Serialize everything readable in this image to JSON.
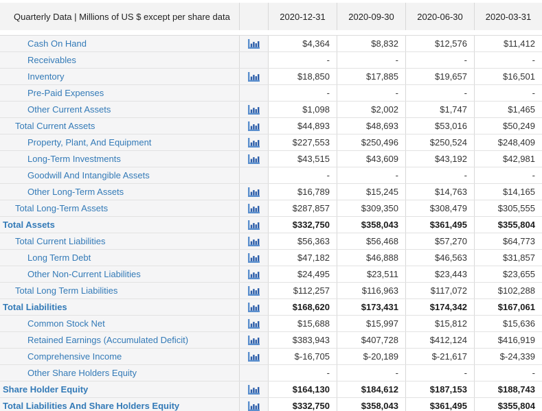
{
  "colors": {
    "link_blue": "#337ab7",
    "icon_axis_blue": "#5b8fce",
    "icon_bar_blue": "#2a5ca8",
    "header_bg": "#f3f3f3",
    "label_col_bg": "#f5f5f6",
    "border_gray": "#d8d8d8"
  },
  "table": {
    "title": "Quarterly Data | Millions of US $ except per share data",
    "columns": [
      "2020-12-31",
      "2020-09-30",
      "2020-06-30",
      "2020-03-31"
    ],
    "rows": [
      {
        "label": "Cash On Hand",
        "indent": 2,
        "bold": false,
        "has_chart_icon": true,
        "values": [
          "$4,364",
          "$8,832",
          "$12,576",
          "$11,412"
        ]
      },
      {
        "label": "Receivables",
        "indent": 2,
        "bold": false,
        "has_chart_icon": false,
        "values": [
          "-",
          "-",
          "-",
          "-"
        ]
      },
      {
        "label": "Inventory",
        "indent": 2,
        "bold": false,
        "has_chart_icon": true,
        "values": [
          "$18,850",
          "$17,885",
          "$19,657",
          "$16,501"
        ]
      },
      {
        "label": "Pre-Paid Expenses",
        "indent": 2,
        "bold": false,
        "has_chart_icon": false,
        "values": [
          "-",
          "-",
          "-",
          "-"
        ]
      },
      {
        "label": "Other Current Assets",
        "indent": 2,
        "bold": false,
        "has_chart_icon": true,
        "values": [
          "$1,098",
          "$2,002",
          "$1,747",
          "$1,465"
        ]
      },
      {
        "label": "Total Current Assets",
        "indent": 1,
        "bold": false,
        "has_chart_icon": true,
        "values": [
          "$44,893",
          "$48,693",
          "$53,016",
          "$50,249"
        ]
      },
      {
        "label": "Property, Plant, And Equipment",
        "indent": 2,
        "bold": false,
        "has_chart_icon": true,
        "values": [
          "$227,553",
          "$250,496",
          "$250,524",
          "$248,409"
        ]
      },
      {
        "label": "Long-Term Investments",
        "indent": 2,
        "bold": false,
        "has_chart_icon": true,
        "values": [
          "$43,515",
          "$43,609",
          "$43,192",
          "$42,981"
        ]
      },
      {
        "label": "Goodwill And Intangible Assets",
        "indent": 2,
        "bold": false,
        "has_chart_icon": false,
        "values": [
          "-",
          "-",
          "-",
          "-"
        ]
      },
      {
        "label": "Other Long-Term Assets",
        "indent": 2,
        "bold": false,
        "has_chart_icon": true,
        "values": [
          "$16,789",
          "$15,245",
          "$14,763",
          "$14,165"
        ]
      },
      {
        "label": "Total Long-Term Assets",
        "indent": 1,
        "bold": false,
        "has_chart_icon": true,
        "values": [
          "$287,857",
          "$309,350",
          "$308,479",
          "$305,555"
        ]
      },
      {
        "label": "Total Assets",
        "indent": 0,
        "bold": true,
        "has_chart_icon": true,
        "values": [
          "$332,750",
          "$358,043",
          "$361,495",
          "$355,804"
        ]
      },
      {
        "label": "Total Current Liabilities",
        "indent": 1,
        "bold": false,
        "has_chart_icon": true,
        "values": [
          "$56,363",
          "$56,468",
          "$57,270",
          "$64,773"
        ]
      },
      {
        "label": "Long Term Debt",
        "indent": 2,
        "bold": false,
        "has_chart_icon": true,
        "values": [
          "$47,182",
          "$46,888",
          "$46,563",
          "$31,857"
        ]
      },
      {
        "label": "Other Non-Current Liabilities",
        "indent": 2,
        "bold": false,
        "has_chart_icon": true,
        "values": [
          "$24,495",
          "$23,511",
          "$23,443",
          "$23,655"
        ]
      },
      {
        "label": "Total Long Term Liabilities",
        "indent": 1,
        "bold": false,
        "has_chart_icon": true,
        "values": [
          "$112,257",
          "$116,963",
          "$117,072",
          "$102,288"
        ]
      },
      {
        "label": "Total Liabilities",
        "indent": 0,
        "bold": true,
        "has_chart_icon": true,
        "values": [
          "$168,620",
          "$173,431",
          "$174,342",
          "$167,061"
        ]
      },
      {
        "label": "Common Stock Net",
        "indent": 2,
        "bold": false,
        "has_chart_icon": true,
        "values": [
          "$15,688",
          "$15,997",
          "$15,812",
          "$15,636"
        ]
      },
      {
        "label": "Retained Earnings (Accumulated Deficit)",
        "indent": 2,
        "bold": false,
        "has_chart_icon": true,
        "values": [
          "$383,943",
          "$407,728",
          "$412,124",
          "$416,919"
        ]
      },
      {
        "label": "Comprehensive Income",
        "indent": 2,
        "bold": false,
        "has_chart_icon": true,
        "values": [
          "$-16,705",
          "$-20,189",
          "$-21,617",
          "$-24,339"
        ]
      },
      {
        "label": "Other Share Holders Equity",
        "indent": 2,
        "bold": false,
        "has_chart_icon": false,
        "values": [
          "-",
          "-",
          "-",
          "-"
        ]
      },
      {
        "label": "Share Holder Equity",
        "indent": 0,
        "bold": true,
        "has_chart_icon": true,
        "values": [
          "$164,130",
          "$184,612",
          "$187,153",
          "$188,743"
        ]
      },
      {
        "label": "Total Liabilities And Share Holders Equity",
        "indent": 0,
        "bold": true,
        "has_chart_icon": true,
        "values": [
          "$332,750",
          "$358,043",
          "$361,495",
          "$355,804"
        ]
      }
    ]
  }
}
